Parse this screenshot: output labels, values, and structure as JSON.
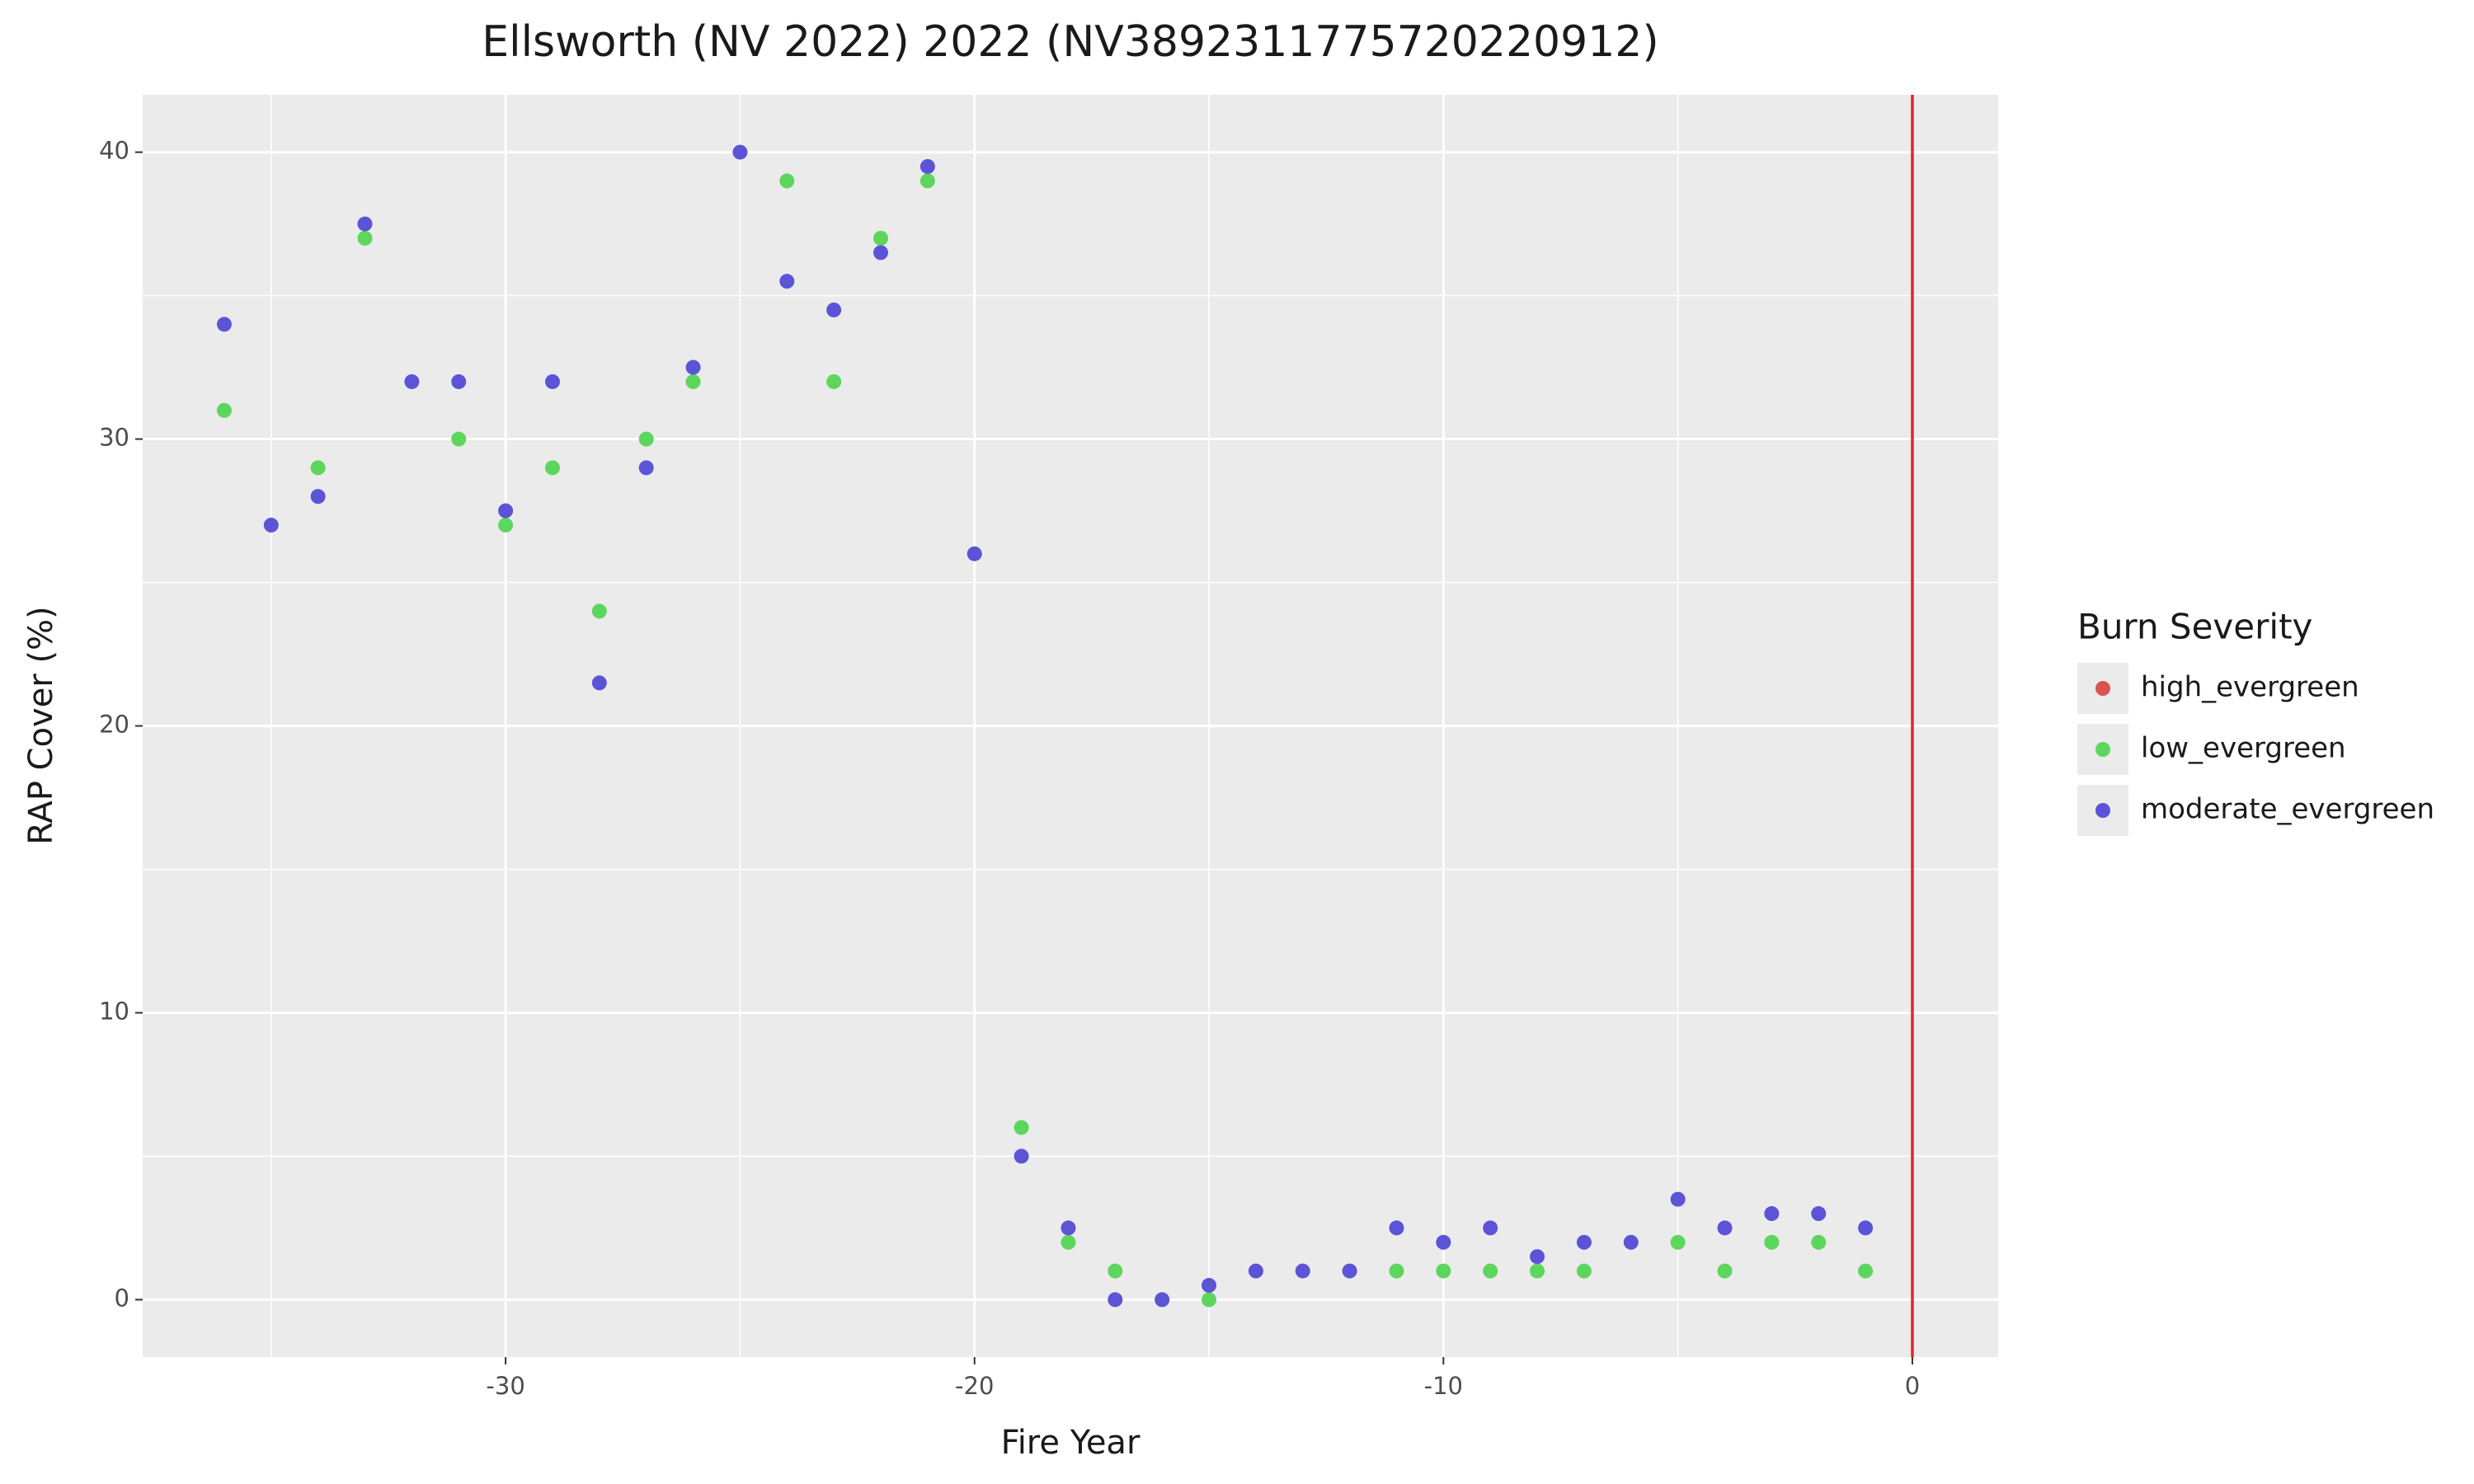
{
  "chart_data": {
    "type": "scatter",
    "title": "Ellsworth (NV 2022) 2022 (NV3892311775720220912)",
    "x_label": "Fire Year",
    "y_label": "RAP Cover (%)",
    "legend_title": "Burn Severity",
    "legend_position": "right",
    "xlim": [
      -37.74,
      1.83
    ],
    "ylim": [
      -2,
      42
    ],
    "xticks": [
      -30,
      -20,
      -10,
      0
    ],
    "yticks": [
      0,
      10,
      20,
      30,
      40
    ],
    "grid": true,
    "vline": {
      "x": 0,
      "color": "#e8232a"
    },
    "series": [
      {
        "name": "high_evergreen",
        "color": "#d9534f",
        "x": [],
        "values": []
      },
      {
        "name": "low_evergreen",
        "color": "#5cd65c",
        "x": [
          -36,
          -34,
          -33,
          -31,
          -30,
          -29,
          -28,
          -27,
          -26,
          -24,
          -23,
          -22,
          -21,
          -19,
          -18,
          -17,
          -15,
          -11,
          -10,
          -9,
          -8,
          -7,
          -5,
          -4,
          -3,
          -2,
          -1
        ],
        "values": [
          31,
          29,
          37,
          30,
          27,
          29,
          24,
          30,
          32,
          39,
          32,
          37,
          39,
          6,
          2,
          1,
          0,
          1,
          1,
          1,
          1,
          1,
          2,
          1,
          2,
          2,
          1
        ]
      },
      {
        "name": "moderate_evergreen",
        "color": "#5c54d6",
        "x": [
          -36,
          -35,
          -34,
          -33,
          -32,
          -31,
          -30,
          -29,
          -28,
          -27,
          -26,
          -25,
          -24,
          -23,
          -22,
          -21,
          -20,
          -19,
          -18,
          -17,
          -16,
          -15,
          -14,
          -13,
          -12,
          -11,
          -10,
          -9,
          -8,
          -7,
          -6,
          -5,
          -4,
          -3,
          -2,
          -1
        ],
        "values": [
          34,
          27,
          28,
          37.5,
          32,
          32,
          27.5,
          32,
          21.5,
          29,
          32.5,
          40,
          35.5,
          34.5,
          36.5,
          39.5,
          26,
          5,
          2.5,
          0,
          0,
          0.5,
          1,
          1,
          1,
          2.5,
          2,
          2.5,
          1.5,
          2,
          2,
          3.5,
          2.5,
          3,
          3,
          2.5
        ]
      }
    ]
  }
}
